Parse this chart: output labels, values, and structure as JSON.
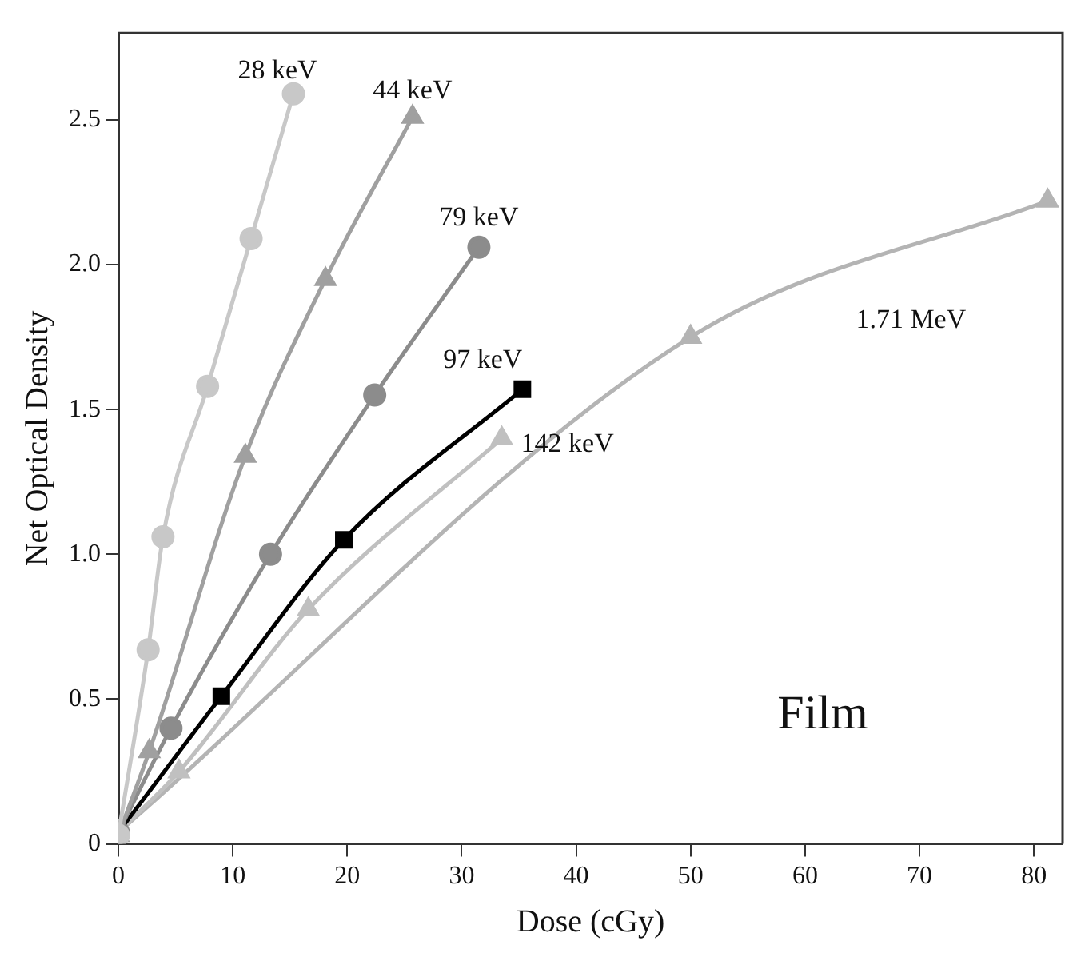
{
  "chart_data": {
    "type": "line",
    "xlabel": "Dose (cGy)",
    "ylabel": "Net Optical Density",
    "xlim": [
      0,
      82.5
    ],
    "ylim": [
      0,
      2.8
    ],
    "xticks": [
      0,
      10,
      20,
      30,
      40,
      50,
      60,
      70,
      80
    ],
    "yticks": [
      0,
      0.5,
      {
        "value": 1,
        "label": "1.0"
      },
      1.5,
      {
        "value": 2,
        "label": "2.0"
      },
      2.5
    ],
    "grid": false,
    "legend": false,
    "line_style": "solid",
    "series": [
      {
        "name": "28 keV",
        "color": "#c8c8c8",
        "marker": "circle",
        "x": [
          0,
          2.6,
          3.9,
          7.8,
          11.6,
          15.3
        ],
        "values": [
          0.03,
          0.67,
          1.06,
          1.58,
          2.09,
          2.59
        ]
      },
      {
        "name": "44 keV",
        "color": "#a0a0a0",
        "marker": "triangle",
        "x": [
          0,
          2.7,
          11.1,
          18.1,
          25.7
        ],
        "values": [
          0.03,
          0.32,
          1.34,
          1.95,
          2.51
        ]
      },
      {
        "name": "79 keV",
        "color": "#8c8c8c",
        "marker": "circle",
        "x": [
          0,
          4.6,
          13.3,
          22.4,
          31.5
        ],
        "values": [
          0.04,
          0.4,
          1.0,
          1.55,
          2.06
        ]
      },
      {
        "name": "97 keV",
        "color": "#000000",
        "marker": "square",
        "x": [
          0,
          9.0,
          19.7,
          35.3
        ],
        "values": [
          0.04,
          0.51,
          1.05,
          1.57
        ]
      },
      {
        "name": "142 keV",
        "color": "#c0c0c0",
        "marker": "triangle",
        "x": [
          0,
          5.3,
          16.6,
          33.5
        ],
        "values": [
          0.04,
          0.25,
          0.81,
          1.4
        ]
      },
      {
        "name": "1.71 MeV",
        "color": "#b4b4b4",
        "marker": "triangle",
        "x": [
          0,
          50,
          81.2
        ],
        "values": [
          0.04,
          1.75,
          2.22
        ]
      }
    ],
    "annotations": [
      "Film"
    ]
  }
}
